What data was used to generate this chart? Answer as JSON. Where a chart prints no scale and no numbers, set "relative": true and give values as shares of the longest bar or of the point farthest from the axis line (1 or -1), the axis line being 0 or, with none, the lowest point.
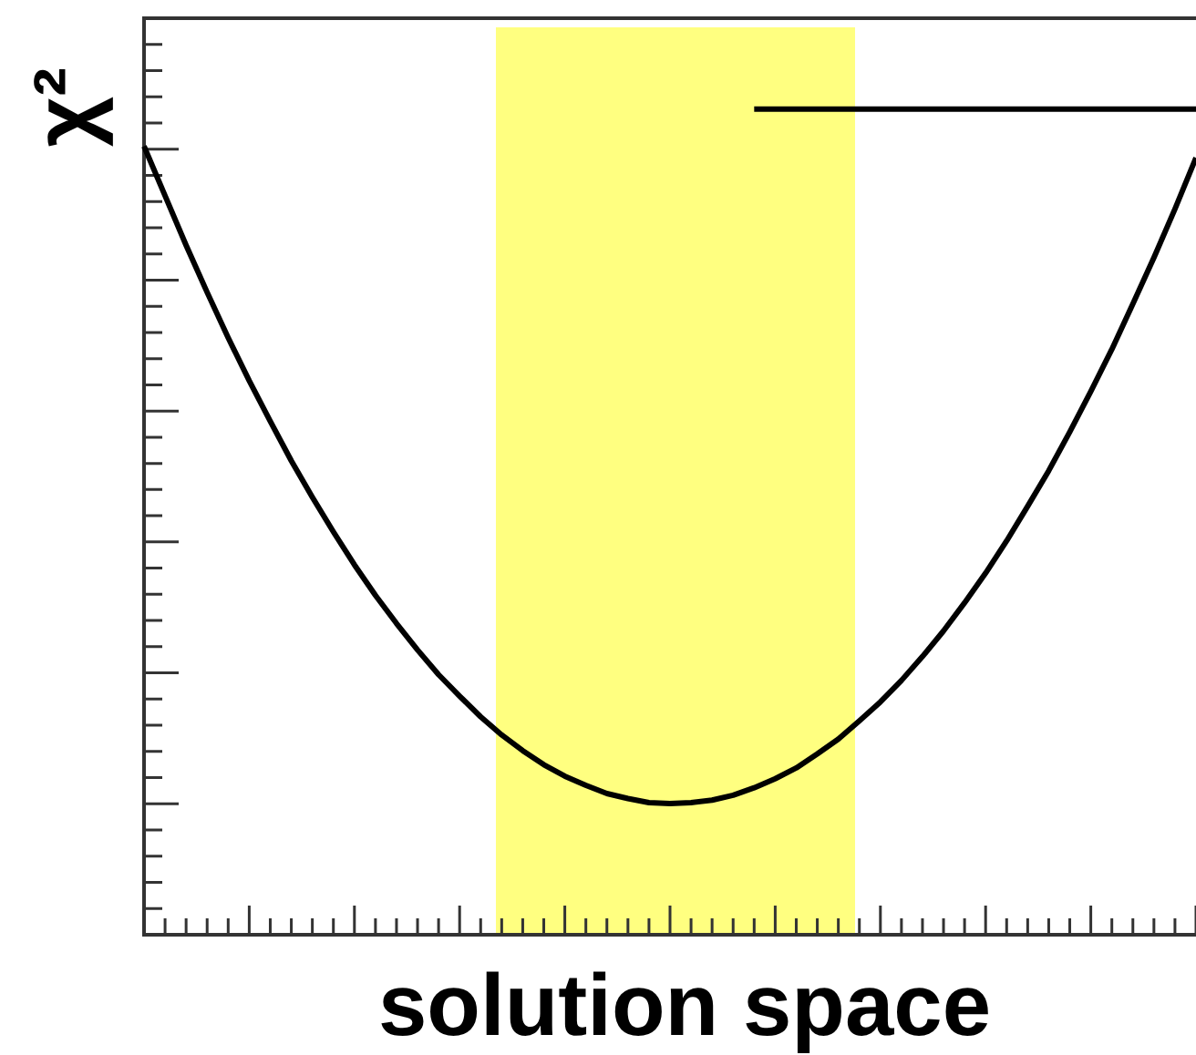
{
  "chart_data": {
    "type": "line",
    "xlabel": "solution space",
    "ylabel": "χ²",
    "relative": true,
    "tick_labels": false,
    "marker": "none",
    "categories": [
      null,
      null,
      null,
      null,
      null,
      null,
      null,
      null,
      null,
      null,
      null,
      null,
      null,
      null,
      null,
      null,
      null,
      null,
      null,
      null,
      null,
      null,
      null,
      null,
      null,
      null,
      null,
      null,
      null,
      null,
      null,
      null,
      null,
      null,
      null,
      null,
      null,
      null,
      null,
      null,
      null,
      null,
      null,
      null,
      null,
      null,
      null,
      null,
      null,
      null,
      null
    ],
    "series": [
      {
        "color": "#000000",
        "values": [
          0.955,
          0.895,
          0.835,
          0.778,
          0.723,
          0.671,
          0.622,
          0.574,
          0.53,
          0.488,
          0.448,
          0.411,
          0.377,
          0.345,
          0.315,
          0.289,
          0.264,
          0.242,
          0.223,
          0.206,
          0.192,
          0.181,
          0.171,
          0.165,
          0.16,
          0.159,
          0.16,
          0.163,
          0.169,
          0.178,
          0.189,
          0.202,
          0.219,
          0.237,
          0.259,
          0.282,
          0.308,
          0.337,
          0.368,
          0.402,
          0.438,
          0.477,
          0.519,
          0.562,
          0.609,
          0.658,
          0.709,
          0.764,
          0.82,
          0.879,
          0.941
        ]
      },
      {
        "color": "#000000",
        "values": [
          null,
          null,
          null,
          null,
          null,
          null,
          null,
          null,
          null,
          null,
          null,
          null,
          null,
          null,
          null,
          null,
          null,
          null,
          null,
          null,
          null,
          null,
          null,
          null,
          null,
          null,
          null,
          null,
          null,
          1,
          1,
          1,
          1,
          1,
          1,
          1,
          1,
          1,
          1,
          1,
          1,
          1,
          1,
          1,
          1,
          1,
          1,
          1,
          1,
          1,
          1
        ]
      }
    ]
  }
}
